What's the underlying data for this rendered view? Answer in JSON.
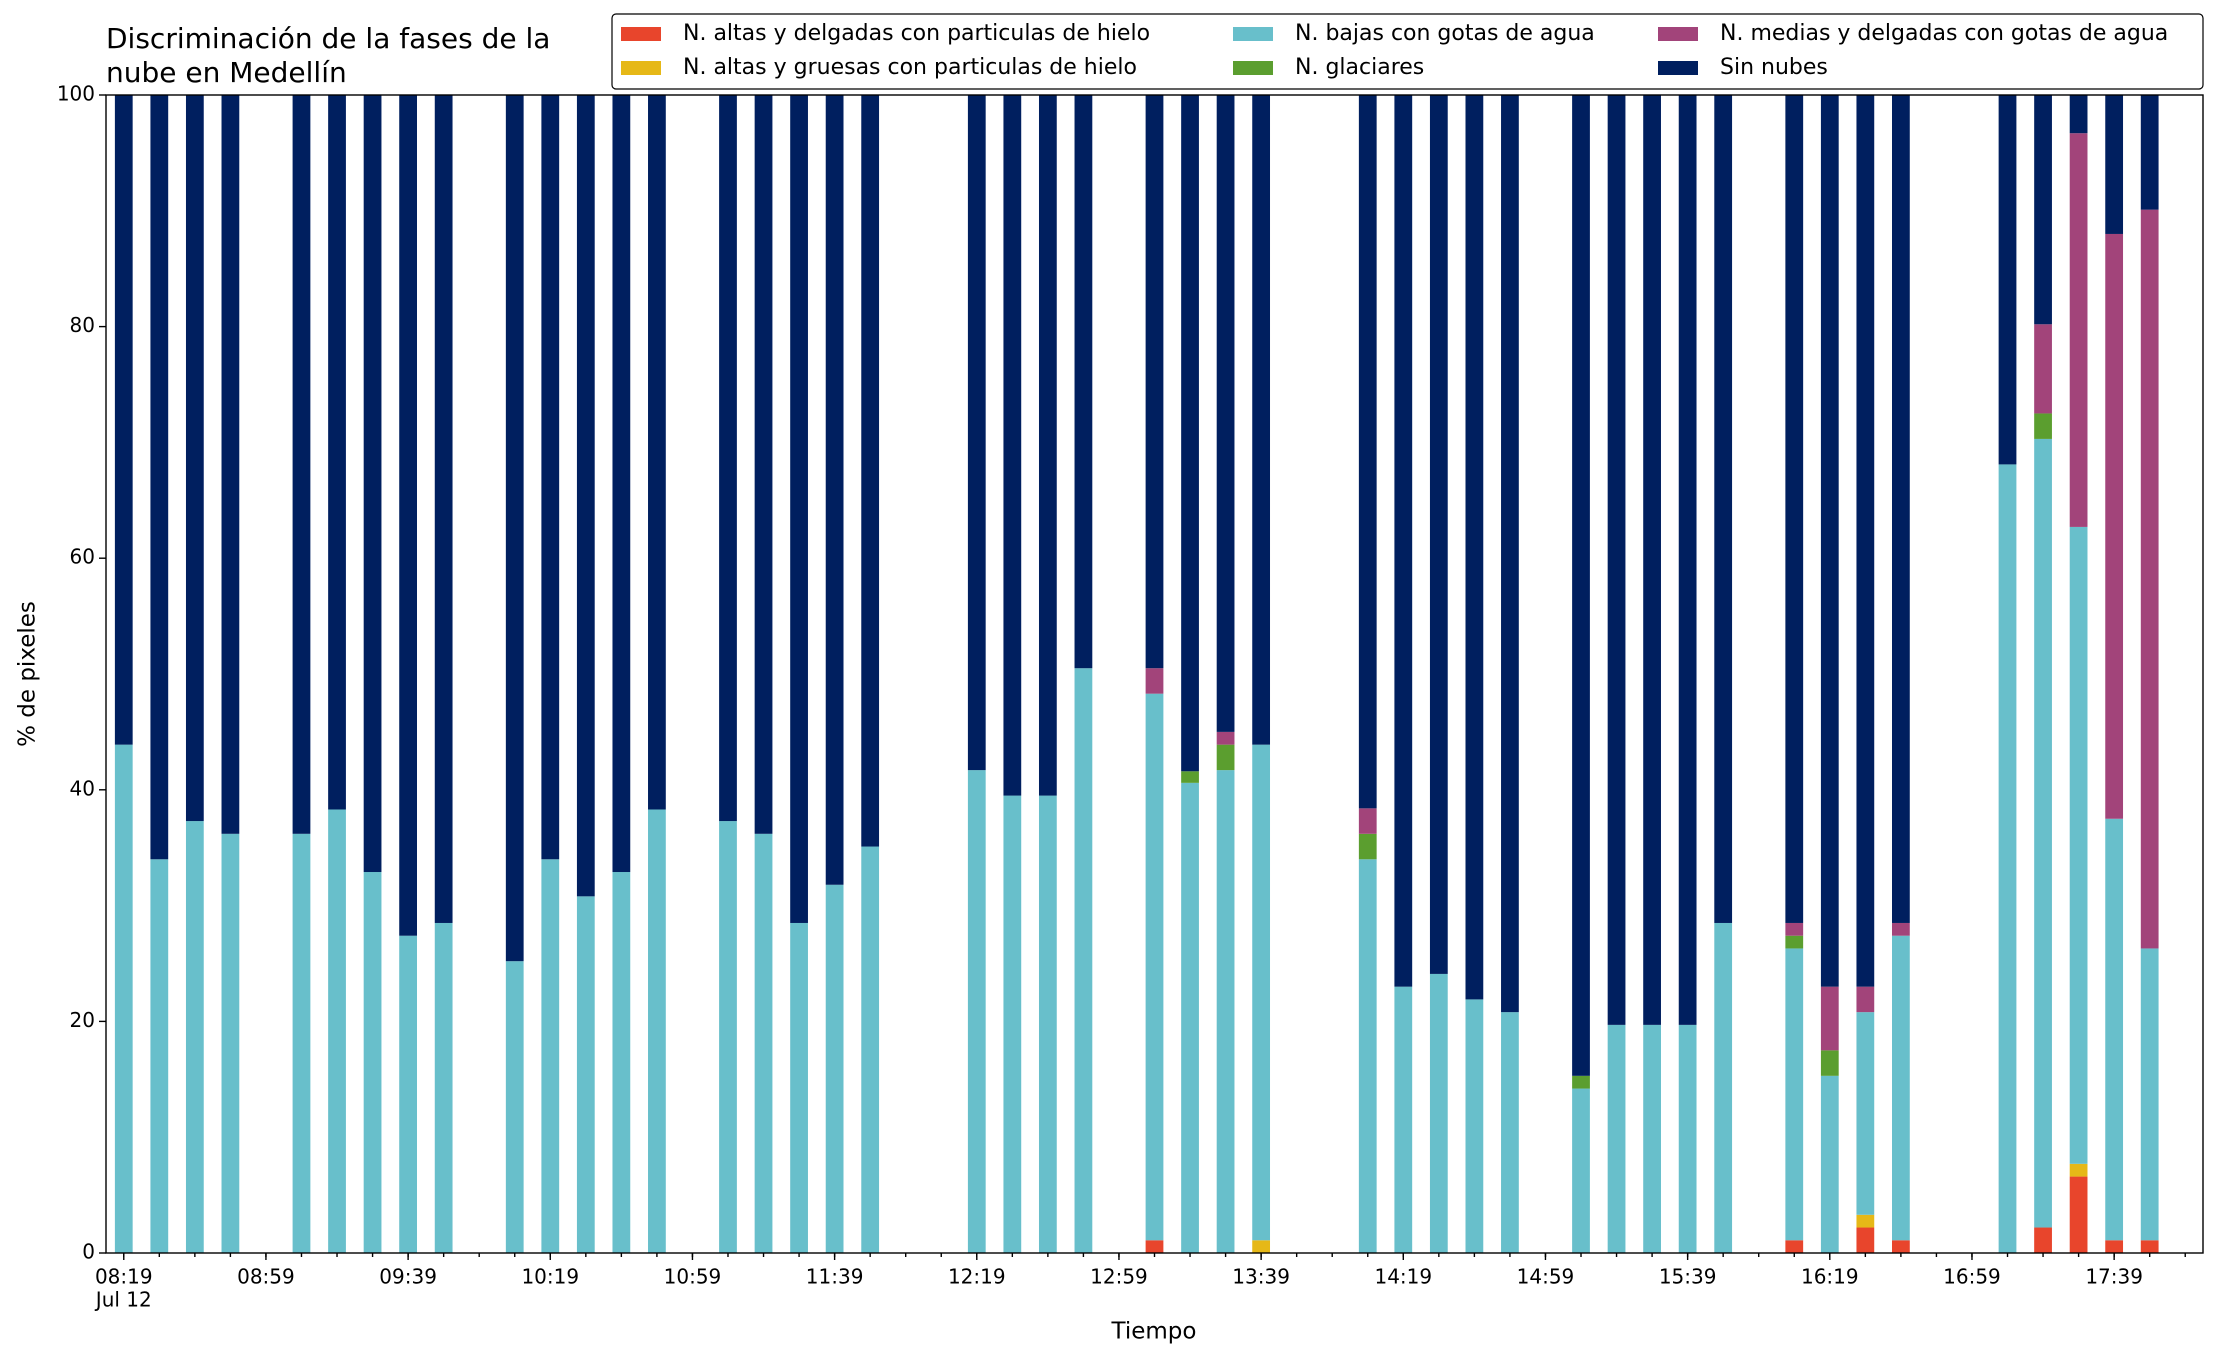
{
  "chart_data": {
    "type": "stacked_bar",
    "title": "Discriminación de la fases de la\nnube en Medellín",
    "x_label": "Tiempo",
    "y_label": "% de pixeles",
    "x_date_label": "Jul 12",
    "x": [
      "08:19",
      "08:29",
      "08:39",
      "08:49",
      "09:09",
      "09:19",
      "09:29",
      "09:39",
      "09:49",
      "10:09",
      "10:19",
      "10:29",
      "10:39",
      "10:49",
      "11:09",
      "11:19",
      "11:29",
      "11:39",
      "11:49",
      "12:19",
      "12:29",
      "12:39",
      "12:49",
      "13:09",
      "13:19",
      "13:29",
      "13:39",
      "14:09",
      "14:19",
      "14:29",
      "14:39",
      "14:49",
      "15:09",
      "15:19",
      "15:29",
      "15:39",
      "15:49",
      "16:09",
      "16:19",
      "16:29",
      "16:39",
      "17:09",
      "17:19",
      "17:29",
      "17:39",
      "17:49"
    ],
    "series": [
      {
        "name": "N. altas y delgadas con particulas de hielo",
        "color": "#e8452c",
        "values": [
          0,
          0,
          0,
          0,
          0,
          0,
          0,
          0,
          0,
          0,
          0,
          0,
          0,
          0,
          0,
          0,
          0,
          0,
          0,
          0,
          0,
          0,
          0,
          1.1,
          0,
          0,
          0,
          0,
          0,
          0,
          0,
          0,
          0,
          0,
          0,
          0,
          0,
          1.1,
          0,
          2.2,
          1.1,
          0,
          2.2,
          6.6,
          1.1,
          1.1
        ]
      },
      {
        "name": "N. altas y gruesas con particulas de hielo",
        "color": "#e6b817",
        "values": [
          0,
          0,
          0,
          0,
          0,
          0,
          0,
          0,
          0,
          0,
          0,
          0,
          0,
          0,
          0,
          0,
          0,
          0,
          0,
          0,
          0,
          0,
          0,
          0,
          0,
          0,
          1.1,
          0,
          0,
          0,
          0,
          0,
          0,
          0,
          0,
          0,
          0,
          0,
          0,
          1.1,
          0,
          0,
          0,
          1.1,
          0,
          0
        ]
      },
      {
        "name": "N. bajas con gotas de agua",
        "color": "#68bfcb",
        "values": [
          43.9,
          34.0,
          37.3,
          36.2,
          36.2,
          38.3,
          32.9,
          27.4,
          28.5,
          25.2,
          34.0,
          30.8,
          32.9,
          38.3,
          37.3,
          36.2,
          28.5,
          31.8,
          35.1,
          41.7,
          39.5,
          39.5,
          50.5,
          47.2,
          40.6,
          41.7,
          42.8,
          34.0,
          23.0,
          24.1,
          21.9,
          20.8,
          14.2,
          19.7,
          19.7,
          19.7,
          28.5,
          25.2,
          15.3,
          17.5,
          26.3,
          68.1,
          68.1,
          55.0,
          36.4,
          25.2
        ]
      },
      {
        "name": "N. glaciares",
        "color": "#5b9e2f",
        "values": [
          0,
          0,
          0,
          0,
          0,
          0,
          0,
          0,
          0,
          0,
          0,
          0,
          0,
          0,
          0,
          0,
          0,
          0,
          0,
          0,
          0,
          0,
          0,
          0,
          1.0,
          2.2,
          0,
          2.2,
          0,
          0,
          0,
          0,
          1.1,
          0,
          0,
          0,
          0,
          1.1,
          2.2,
          0,
          0,
          0,
          2.2,
          0,
          0,
          0
        ]
      },
      {
        "name": "N. medias y delgadas con gotas de agua",
        "color": "#a2447a",
        "values": [
          0,
          0,
          0,
          0,
          0,
          0,
          0,
          0,
          0,
          0,
          0,
          0,
          0,
          0,
          0,
          0,
          0,
          0,
          0,
          0,
          0,
          0,
          0,
          2.2,
          0,
          1.1,
          0,
          2.2,
          0,
          0,
          0,
          0,
          0,
          0,
          0,
          0,
          0,
          1.1,
          5.5,
          2.2,
          1.1,
          0,
          7.7,
          34.0,
          50.5,
          63.8
        ]
      },
      {
        "name": "Sin nubes",
        "color": "#001f5f",
        "values": [
          56.1,
          66.0,
          62.7,
          63.8,
          63.8,
          61.7,
          67.1,
          72.6,
          71.5,
          74.8,
          66.0,
          69.2,
          67.1,
          61.7,
          62.7,
          63.8,
          71.5,
          68.2,
          64.9,
          58.3,
          60.5,
          60.5,
          49.5,
          49.5,
          58.4,
          55.0,
          56.1,
          61.6,
          77.0,
          75.9,
          78.1,
          79.2,
          84.7,
          80.3,
          80.3,
          80.3,
          71.5,
          71.5,
          77.0,
          77.0,
          71.5,
          31.9,
          19.8,
          3.3,
          12.0,
          9.9
        ]
      }
    ],
    "xlim": [
      "08:14",
      "18:04"
    ],
    "xticks": [
      "08:19",
      "08:59",
      "09:39",
      "10:19",
      "10:59",
      "11:39",
      "12:19",
      "12:59",
      "13:39",
      "14:19",
      "14:59",
      "15:39",
      "16:19",
      "16:59",
      "17:39"
    ],
    "xminor_step": 10,
    "ylim": [
      0,
      100
    ],
    "yticks": [
      0,
      20,
      40,
      60,
      80,
      100
    ],
    "legend": "upper right",
    "grid": false
  }
}
